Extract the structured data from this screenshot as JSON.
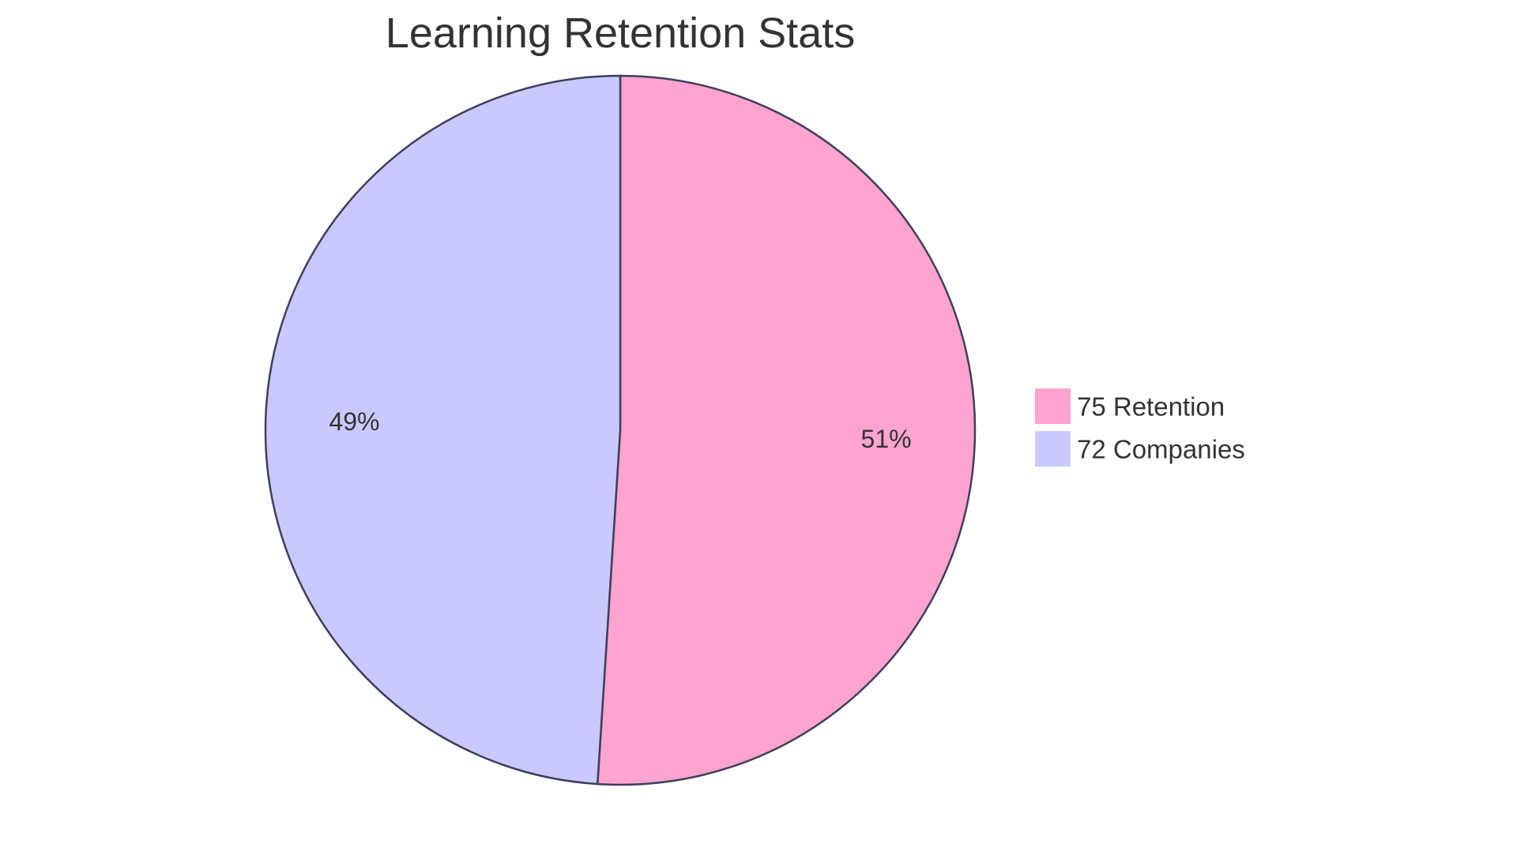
{
  "chart_data": {
    "type": "pie",
    "title": "Learning Retention Stats",
    "slices": [
      {
        "label": "75 Retention",
        "value": 75,
        "percent_label": "51%",
        "color": "#ffa3cf"
      },
      {
        "label": "72 Companies",
        "value": 72,
        "percent_label": "49%",
        "color": "#c9c9ff"
      }
    ],
    "stroke_color": "#3e3e5c",
    "legend_position": "right"
  }
}
